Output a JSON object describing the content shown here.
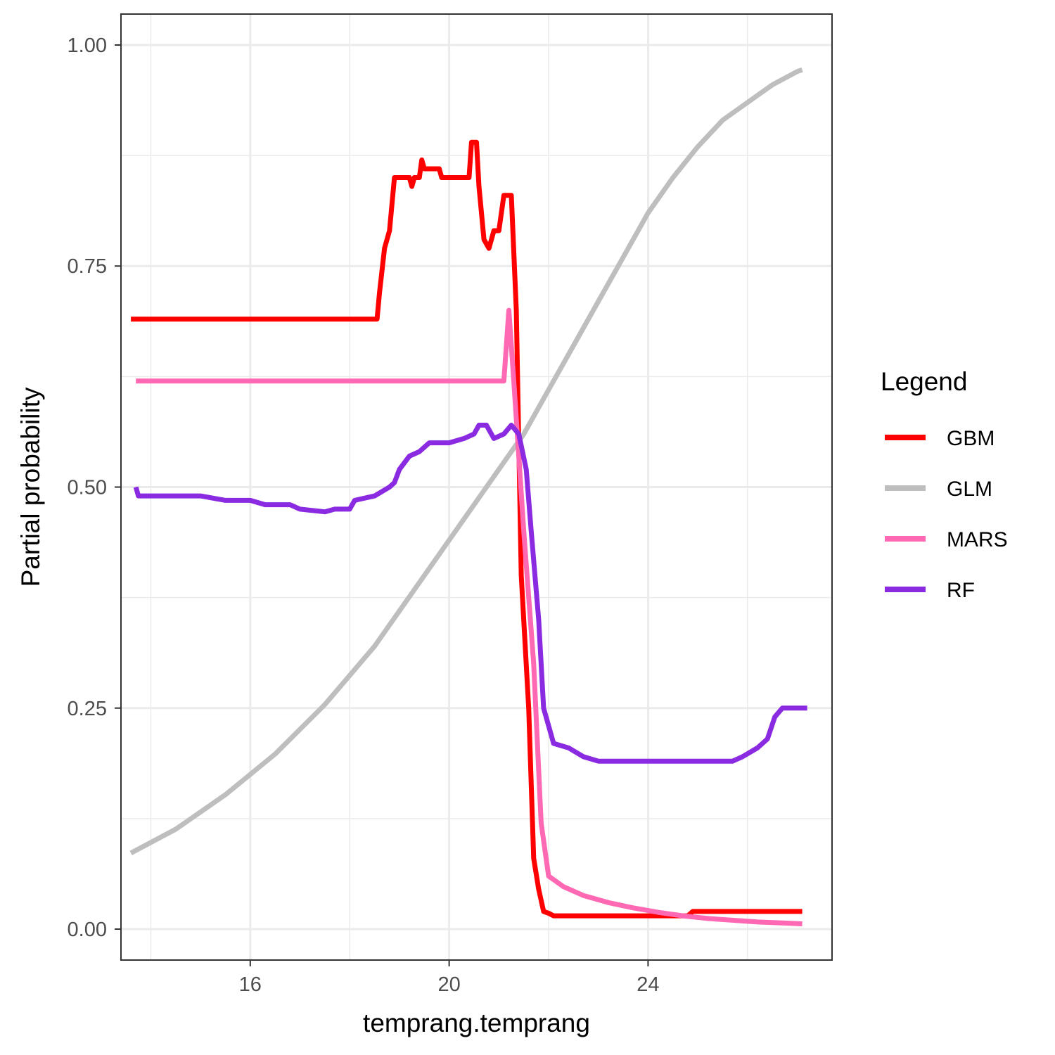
{
  "chart_data": {
    "type": "line",
    "title": "",
    "xlabel": "temprang.temprang",
    "ylabel": "Partial probability",
    "xlim": [
      13.4,
      27.7
    ],
    "ylim": [
      -0.035,
      1.035
    ],
    "x_ticks": [
      16,
      20,
      24
    ],
    "x_tick_labels": [
      "16",
      "20",
      "24"
    ],
    "x_minor_ticks": [
      14,
      18,
      22,
      26
    ],
    "y_ticks": [
      0,
      0.25,
      0.5,
      0.75,
      1
    ],
    "y_tick_labels": [
      "0.00",
      "0.25",
      "0.50",
      "0.75",
      "1.00"
    ],
    "y_minor_ticks": [
      0.125,
      0.375,
      0.625,
      0.875
    ],
    "grid": true,
    "legend": {
      "title": "Legend",
      "position": "right"
    },
    "series": [
      {
        "name": "GBM",
        "color": "#FF0000",
        "points": [
          [
            13.6,
            0.69
          ],
          [
            18.55,
            0.69
          ],
          [
            18.6,
            0.72
          ],
          [
            18.7,
            0.77
          ],
          [
            18.8,
            0.79
          ],
          [
            18.9,
            0.85
          ],
          [
            19.2,
            0.85
          ],
          [
            19.25,
            0.84
          ],
          [
            19.3,
            0.85
          ],
          [
            19.4,
            0.85
          ],
          [
            19.45,
            0.87
          ],
          [
            19.5,
            0.86
          ],
          [
            19.8,
            0.86
          ],
          [
            19.85,
            0.85
          ],
          [
            20.4,
            0.85
          ],
          [
            20.45,
            0.89
          ],
          [
            20.55,
            0.89
          ],
          [
            20.6,
            0.84
          ],
          [
            20.7,
            0.78
          ],
          [
            20.8,
            0.77
          ],
          [
            20.9,
            0.79
          ],
          [
            21.0,
            0.79
          ],
          [
            21.1,
            0.83
          ],
          [
            21.25,
            0.83
          ],
          [
            21.35,
            0.7
          ],
          [
            21.45,
            0.4
          ],
          [
            21.6,
            0.25
          ],
          [
            21.7,
            0.08
          ],
          [
            21.8,
            0.045
          ],
          [
            21.9,
            0.02
          ],
          [
            22.0,
            0.018
          ],
          [
            22.1,
            0.015
          ],
          [
            24.8,
            0.015
          ],
          [
            24.9,
            0.02
          ],
          [
            27.1,
            0.02
          ]
        ]
      },
      {
        "name": "GLM",
        "color": "#BEBEBE",
        "points": [
          [
            13.6,
            0.086
          ],
          [
            14.5,
            0.113
          ],
          [
            15.5,
            0.152
          ],
          [
            16.5,
            0.198
          ],
          [
            17.5,
            0.254
          ],
          [
            18.5,
            0.32
          ],
          [
            19.5,
            0.4
          ],
          [
            20.5,
            0.48
          ],
          [
            21.0,
            0.52
          ],
          [
            21.5,
            0.56
          ],
          [
            22.0,
            0.61
          ],
          [
            22.5,
            0.66
          ],
          [
            23.0,
            0.71
          ],
          [
            23.5,
            0.76
          ],
          [
            24.0,
            0.81
          ],
          [
            24.5,
            0.85
          ],
          [
            25.0,
            0.885
          ],
          [
            25.5,
            0.915
          ],
          [
            26.0,
            0.935
          ],
          [
            26.5,
            0.955
          ],
          [
            27.0,
            0.97
          ],
          [
            27.1,
            0.972
          ]
        ]
      },
      {
        "name": "MARS",
        "color": "#FF69B4",
        "points": [
          [
            13.7,
            0.62
          ],
          [
            21.1,
            0.62
          ],
          [
            21.2,
            0.7
          ],
          [
            21.3,
            0.62
          ],
          [
            21.5,
            0.45
          ],
          [
            21.7,
            0.3
          ],
          [
            21.85,
            0.12
          ],
          [
            22.0,
            0.06
          ],
          [
            22.3,
            0.048
          ],
          [
            22.7,
            0.038
          ],
          [
            23.2,
            0.03
          ],
          [
            23.7,
            0.024
          ],
          [
            24.2,
            0.019
          ],
          [
            24.7,
            0.015
          ],
          [
            25.2,
            0.012
          ],
          [
            25.7,
            0.01
          ],
          [
            26.2,
            0.008
          ],
          [
            26.7,
            0.007
          ],
          [
            27.1,
            0.006
          ]
        ]
      },
      {
        "name": "RF",
        "color": "#8A2BE2",
        "points": [
          [
            13.7,
            0.5
          ],
          [
            13.75,
            0.49
          ],
          [
            14.5,
            0.49
          ],
          [
            15.0,
            0.49
          ],
          [
            15.5,
            0.485
          ],
          [
            16.0,
            0.485
          ],
          [
            16.3,
            0.48
          ],
          [
            16.8,
            0.48
          ],
          [
            17.0,
            0.475
          ],
          [
            17.5,
            0.472
          ],
          [
            17.7,
            0.475
          ],
          [
            18.0,
            0.475
          ],
          [
            18.1,
            0.485
          ],
          [
            18.5,
            0.49
          ],
          [
            18.8,
            0.5
          ],
          [
            18.9,
            0.505
          ],
          [
            19.0,
            0.52
          ],
          [
            19.2,
            0.535
          ],
          [
            19.4,
            0.54
          ],
          [
            19.6,
            0.55
          ],
          [
            19.8,
            0.55
          ],
          [
            20.0,
            0.55
          ],
          [
            20.3,
            0.555
          ],
          [
            20.5,
            0.56
          ],
          [
            20.6,
            0.57
          ],
          [
            20.75,
            0.57
          ],
          [
            20.9,
            0.555
          ],
          [
            21.1,
            0.56
          ],
          [
            21.25,
            0.57
          ],
          [
            21.4,
            0.56
          ],
          [
            21.55,
            0.52
          ],
          [
            21.65,
            0.45
          ],
          [
            21.8,
            0.35
          ],
          [
            21.9,
            0.25
          ],
          [
            22.1,
            0.21
          ],
          [
            22.4,
            0.205
          ],
          [
            22.7,
            0.195
          ],
          [
            23.0,
            0.19
          ],
          [
            23.5,
            0.19
          ],
          [
            24.0,
            0.19
          ],
          [
            25.0,
            0.19
          ],
          [
            25.7,
            0.19
          ],
          [
            25.9,
            0.195
          ],
          [
            26.2,
            0.205
          ],
          [
            26.4,
            0.215
          ],
          [
            26.55,
            0.24
          ],
          [
            26.7,
            0.25
          ],
          [
            27.2,
            0.25
          ]
        ]
      }
    ]
  }
}
